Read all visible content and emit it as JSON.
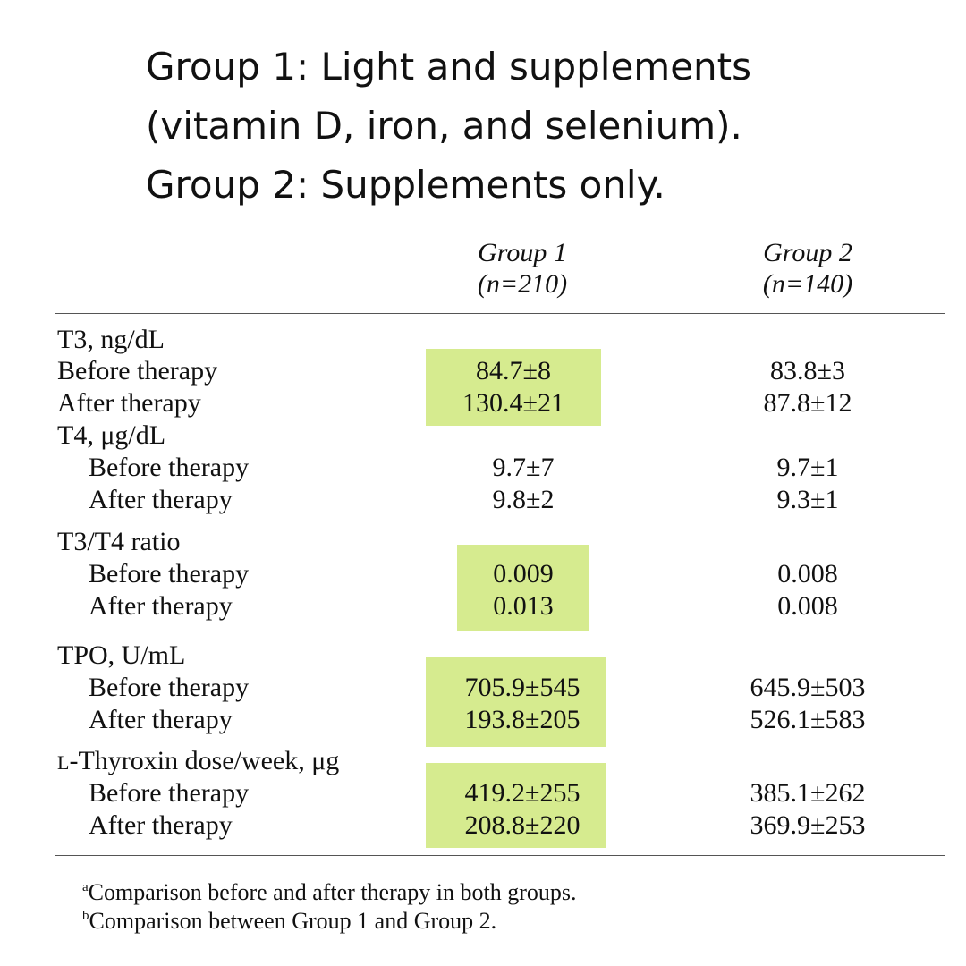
{
  "header_lines": [
    "Group 1: Light and supplements",
    "(vitamin D, iron, and selenium).",
    "Group 2: Supplements only."
  ],
  "columns": [
    {
      "name": "Group 1",
      "n": "(n=210)"
    },
    {
      "name": "Group 2",
      "n": "(n=140)"
    }
  ],
  "highlight_color": "#d6eb8f",
  "rows": [
    {
      "label": "T3, ng/dL",
      "g1": "",
      "g2": ""
    },
    {
      "label": "Before therapy",
      "g1": "84.7±8",
      "g2": "83.8±3"
    },
    {
      "label": "After therapy",
      "g1": "130.4±21",
      "g2": "87.8±12"
    },
    {
      "label": "T4, μg/dL",
      "g1": "",
      "g2": ""
    },
    {
      "label": "Before therapy",
      "g1": "9.7±7",
      "g2": "9.7±1"
    },
    {
      "label": "After therapy",
      "g1": "9.8±2",
      "g2": "9.3±1"
    },
    {
      "label": "T3/T4 ratio",
      "g1": "",
      "g2": ""
    },
    {
      "label": "Before therapy",
      "g1": "0.009",
      "g2": "0.008"
    },
    {
      "label": "After therapy",
      "g1": "0.013",
      "g2": "0.008"
    },
    {
      "label": "TPO, U/mL",
      "g1": "",
      "g2": ""
    },
    {
      "label": "Before therapy",
      "g1": "705.9±545",
      "g2": "645.9±503"
    },
    {
      "label": "After therapy",
      "g1": "193.8±205",
      "g2": "526.1±583"
    },
    {
      "label_prefix": "L",
      "label": "-Thyroxin dose/week, μg",
      "g1": "",
      "g2": ""
    },
    {
      "label": "Before therapy",
      "g1": "419.2±255",
      "g2": "385.1±262"
    },
    {
      "label": "After therapy",
      "g1": "208.8±220",
      "g2": "369.9±253"
    }
  ],
  "footnotes": [
    {
      "mark": "a",
      "text": "Comparison before and after therapy in both groups."
    },
    {
      "mark": "b",
      "text": "Comparison between Group 1 and Group 2."
    }
  ]
}
